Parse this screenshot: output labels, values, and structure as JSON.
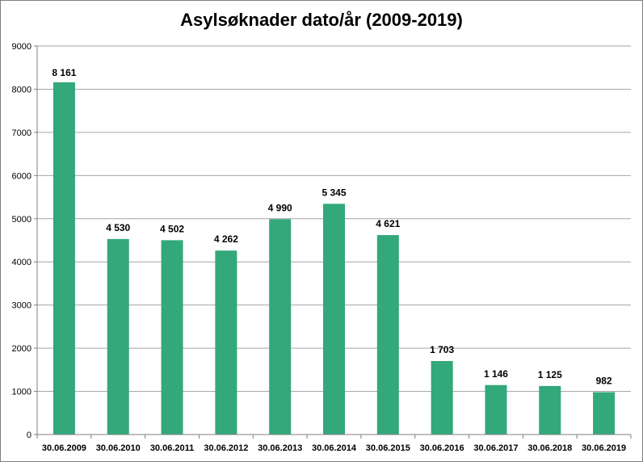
{
  "chart_data": {
    "type": "bar",
    "title": "Asylsøknader dato/år (2009-2019)",
    "xlabel": "",
    "ylabel": "",
    "ylim": [
      0,
      9000
    ],
    "yticks": [
      "0",
      "1000",
      "2000",
      "3000",
      "4000",
      "5000",
      "6000",
      "7000",
      "8000",
      "9000"
    ],
    "grid": true,
    "categories": [
      "30.06.2009",
      "30.06.2010",
      "30.06.2011",
      "30.06.2012",
      "30.06.2013",
      "30.06.2014",
      "30.06.2015",
      "30.06.2016",
      "30.06.2017",
      "30.06.2018",
      "30.06.2019"
    ],
    "values": [
      8161,
      4530,
      4502,
      4262,
      4990,
      5345,
      4621,
      1703,
      1146,
      1125,
      982
    ],
    "data_labels": [
      "8 161",
      "4 530",
      "4 502",
      "4 262",
      "4 990",
      "5 345",
      "4 621",
      "1 703",
      "1 146",
      "1 125",
      "982"
    ],
    "colors": {
      "bar": "#33a87a",
      "grid": "#a6a6a6",
      "axis": "#808080"
    }
  }
}
